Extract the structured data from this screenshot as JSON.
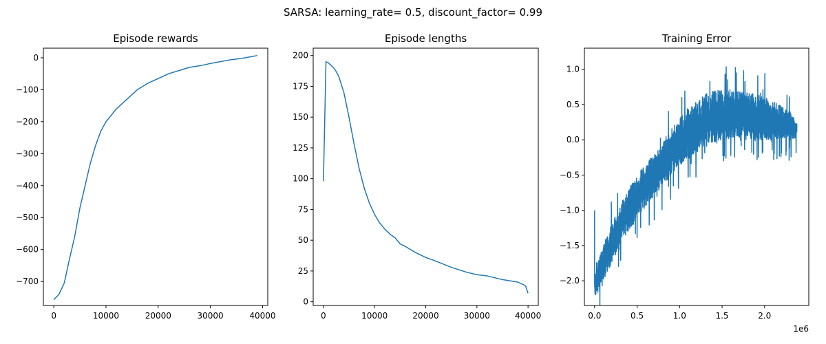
{
  "figure": {
    "suptitle": "SARSA: learning_rate= 0.5, discount_factor= 0.99",
    "line_color": "#1f77b4"
  },
  "chart_data": [
    {
      "type": "line",
      "title": "Episode rewards",
      "xlim": [
        -2000,
        41000
      ],
      "ylim": [
        -775,
        30
      ],
      "xticks": [
        0,
        10000,
        20000,
        30000,
        40000
      ],
      "xtick_labels": [
        "0",
        "10000",
        "20000",
        "30000",
        "40000"
      ],
      "yticks": [
        -700,
        -600,
        -500,
        -400,
        -300,
        -200,
        -100,
        0
      ],
      "ytick_labels": [
        "−700",
        "−600",
        "−500",
        "−400",
        "−300",
        "−200",
        "−100",
        "0"
      ],
      "series": [
        {
          "name": "Episode rewards",
          "x": [
            0,
            1000,
            2000,
            3000,
            4000,
            5000,
            6000,
            7000,
            8000,
            9000,
            10000,
            12000,
            14000,
            16000,
            18000,
            20000,
            22000,
            24000,
            26000,
            28000,
            30000,
            32000,
            34000,
            36000,
            38000,
            39000
          ],
          "y": [
            -757,
            -740,
            -705,
            -630,
            -560,
            -470,
            -400,
            -330,
            -275,
            -230,
            -200,
            -160,
            -130,
            -100,
            -80,
            -65,
            -50,
            -40,
            -30,
            -25,
            -18,
            -12,
            -6,
            -2,
            4,
            7
          ]
        }
      ]
    },
    {
      "type": "line",
      "title": "Episode lengths",
      "xlim": [
        -2000,
        42000
      ],
      "ylim": [
        -3,
        206
      ],
      "xticks": [
        0,
        10000,
        20000,
        30000,
        40000
      ],
      "xtick_labels": [
        "0",
        "10000",
        "20000",
        "30000",
        "40000"
      ],
      "yticks": [
        0,
        25,
        50,
        75,
        100,
        125,
        150,
        175,
        200
      ],
      "ytick_labels": [
        "0",
        "25",
        "50",
        "75",
        "100",
        "125",
        "150",
        "175",
        "200"
      ],
      "series": [
        {
          "name": "Episode lengths",
          "x": [
            0,
            500,
            1000,
            1500,
            2000,
            2500,
            3000,
            4000,
            5000,
            6000,
            7000,
            8000,
            9000,
            10000,
            11000,
            12000,
            13000,
            14000,
            15000,
            16000,
            18000,
            20000,
            22000,
            25000,
            28000,
            30000,
            32000,
            35000,
            38000,
            39500,
            40000
          ],
          "y": [
            98,
            195,
            194,
            192,
            190,
            187,
            183,
            170,
            150,
            128,
            108,
            92,
            80,
            71,
            64,
            59,
            55,
            52,
            47,
            45,
            40,
            36,
            33,
            28,
            24,
            22,
            21,
            18,
            16,
            13,
            7
          ]
        }
      ]
    },
    {
      "type": "line",
      "title": "Training Error",
      "xlim": [
        -120000,
        2520000
      ],
      "ylim": [
        -2.35,
        1.3
      ],
      "xticks": [
        0,
        500000,
        1000000,
        1500000,
        2000000
      ],
      "xtick_labels": [
        "0.0",
        "0.5",
        "1.0",
        "1.5",
        "2.0"
      ],
      "x_offset_label": "1e6",
      "yticks": [
        -2.0,
        -1.5,
        -1.0,
        -0.5,
        0.0,
        0.5,
        1.0
      ],
      "ytick_labels": [
        "−2.0",
        "−1.5",
        "−1.0",
        "−0.5",
        "0.0",
        "0.5",
        "1.0"
      ],
      "series": [
        {
          "name": "Training Error",
          "x_max": 2380000,
          "points": 1800,
          "seed": 7,
          "base_x": [
            0,
            100000,
            200000,
            300000,
            400000,
            500000,
            700000,
            900000,
            1100000,
            1300000,
            1500000,
            1700000,
            1900000,
            2100000,
            2300000,
            2380000
          ],
          "upper": [
            -1.9,
            -1.5,
            -1.2,
            -0.95,
            -0.7,
            -0.5,
            -0.2,
            0.15,
            0.45,
            0.65,
            0.75,
            0.7,
            0.65,
            0.55,
            0.4,
            0.25
          ],
          "lower": [
            -2.25,
            -2.05,
            -1.75,
            -1.5,
            -1.3,
            -1.1,
            -0.8,
            -0.5,
            -0.25,
            -0.1,
            0.0,
            0.0,
            0.0,
            0.0,
            0.0,
            0.03
          ],
          "spike_down_prob": 0.03,
          "spike_up_prob": 0.015,
          "spike_amp": 0.35,
          "x_start": 0,
          "y_start": -1.0
        }
      ]
    }
  ]
}
